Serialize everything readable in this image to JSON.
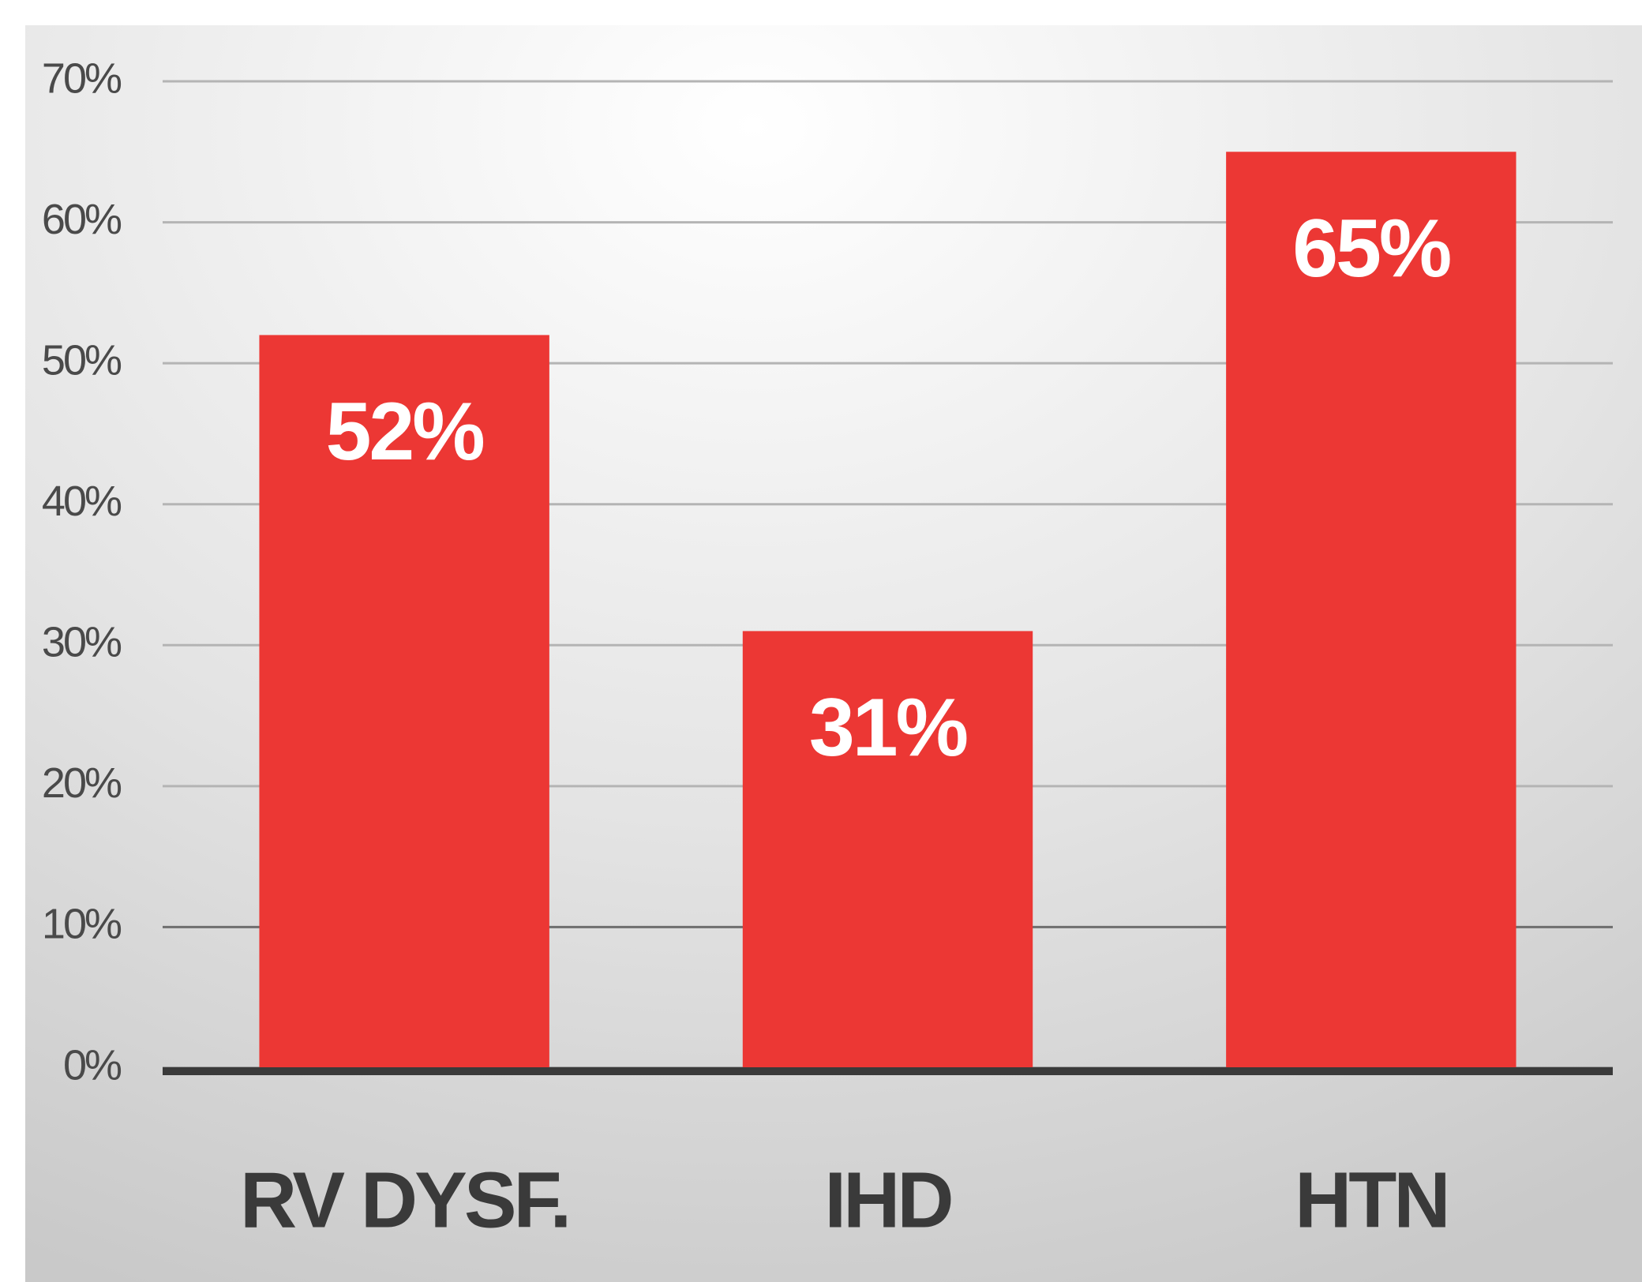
{
  "chart_data": {
    "type": "bar",
    "categories": [
      "RV DYSF.",
      "IHD",
      "HTN"
    ],
    "values": [
      52,
      31,
      65
    ],
    "value_labels": [
      "52%",
      "31%",
      "65%"
    ],
    "color": "#ec3734",
    "ylim": [
      0,
      70
    ],
    "yticks": [
      {
        "value": 0,
        "label": "0%"
      },
      {
        "value": 10,
        "label": "10%"
      },
      {
        "value": 20,
        "label": "20%"
      },
      {
        "value": 30,
        "label": "30%"
      },
      {
        "value": 40,
        "label": "40%"
      },
      {
        "value": 50,
        "label": "50%"
      },
      {
        "value": 60,
        "label": "60%"
      },
      {
        "value": 70,
        "label": "70%"
      }
    ],
    "grid": true
  }
}
